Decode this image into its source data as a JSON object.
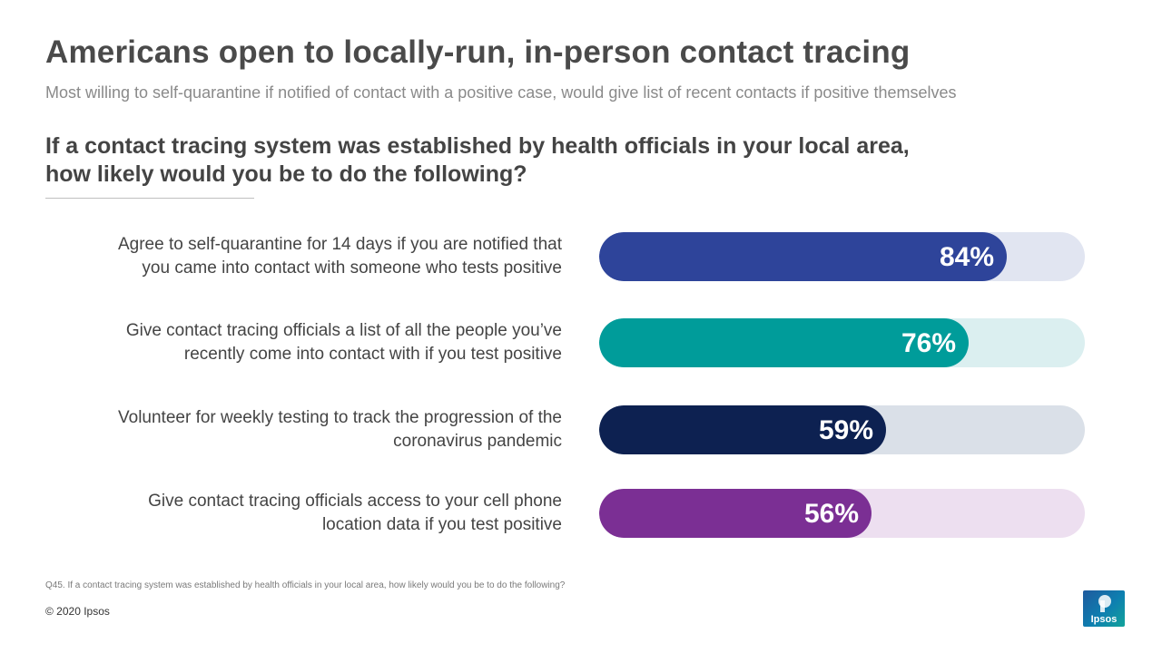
{
  "header": {
    "title": "Americans open to locally-run, in-person contact tracing",
    "subtitle": "Most willing to self-quarantine if notified of contact with a positive case, would give list of recent contacts if positive themselves",
    "question_lines": [
      "If a contact tracing system was established by health officials in your local area,",
      "how likely would you be to do the following?"
    ]
  },
  "chart_data": {
    "type": "bar",
    "orientation": "horizontal",
    "value_unit": "%",
    "xlim": [
      0,
      100
    ],
    "categories": [
      [
        "Agree to self-quarantine for 14 days if you are notified that",
        "you came into contact with someone who tests positive"
      ],
      [
        "Give contact tracing officials a list of all the people you’ve",
        "recently come into contact with if you test positive"
      ],
      [
        "Volunteer for weekly testing to track the progression of the",
        "coronavirus pandemic"
      ],
      [
        "Give contact tracing officials access to your cell phone",
        "location data if you test positive"
      ]
    ],
    "values": [
      84,
      76,
      59,
      56
    ],
    "value_labels": [
      "84%",
      "76%",
      "59%",
      "56%"
    ],
    "colors": [
      "#2e449a",
      "#009c9a",
      "#0d2151",
      "#7b2f94"
    ],
    "track_colors": [
      "#e1e5f1",
      "#dbeff0",
      "#dae0e8",
      "#eddff0"
    ]
  },
  "footer": {
    "footnote": "Q45. If a contact tracing system was established by health officials in your local area, how likely would you be to do the following?",
    "copyright": "© 2020 Ipsos",
    "logo_text": "Ipsos"
  }
}
